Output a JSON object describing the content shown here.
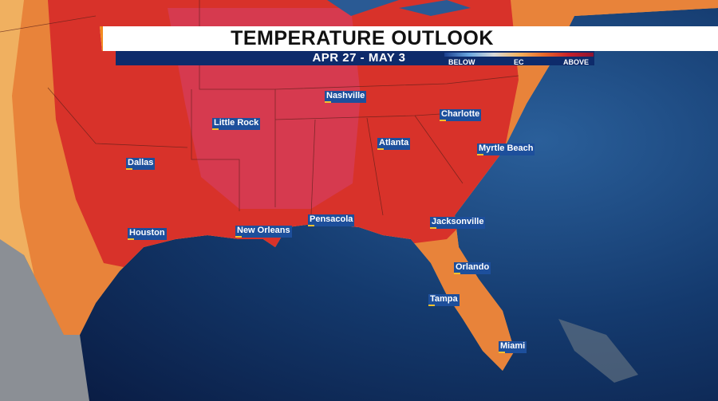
{
  "header": {
    "title": "TEMPERATURE OUTLOOK",
    "dates": "APR 27 - MAY 3"
  },
  "legend": {
    "labels": [
      "BELOW",
      "EC",
      "ABOVE"
    ]
  },
  "cities": [
    "Nashville",
    "Little Rock",
    "Charlotte",
    "Atlanta",
    "Myrtle Beach",
    "Dallas",
    "Houston",
    "New Orleans",
    "Pensacola",
    "Jacksonville",
    "Orlando",
    "Tampa",
    "Miami"
  ]
}
